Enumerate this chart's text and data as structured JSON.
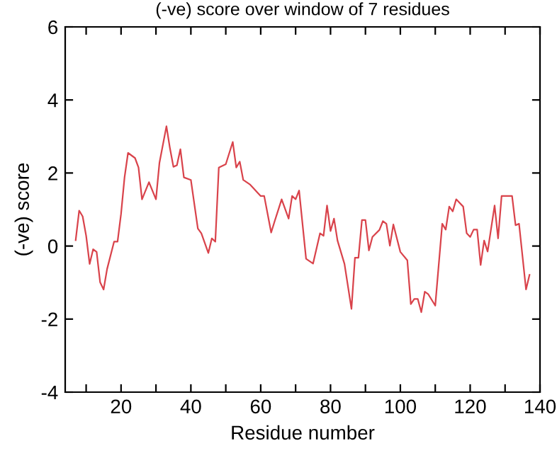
{
  "chart_data": {
    "type": "line",
    "title": "(-ve) score over window of 7 residues",
    "xlabel": "Residue number",
    "ylabel": "(-ve) score",
    "x": [
      7,
      8,
      9,
      10,
      11,
      12,
      13,
      14,
      15,
      16,
      18,
      19,
      20,
      21,
      22,
      24,
      25,
      26,
      28,
      30,
      31,
      33,
      34,
      35,
      36,
      37,
      38,
      40,
      42,
      43,
      45,
      46,
      47,
      48,
      50,
      52,
      53,
      54,
      55,
      57,
      60,
      61,
      63,
      64,
      66,
      68,
      69,
      70,
      71,
      73,
      75,
      77,
      78,
      79,
      80,
      81,
      82,
      84,
      86,
      87,
      88,
      89,
      90,
      91,
      92,
      94,
      95,
      96,
      97,
      98,
      100,
      102,
      103,
      104,
      105,
      106,
      107,
      108,
      110,
      112,
      113,
      114,
      115,
      116,
      118,
      119,
      120,
      121,
      122,
      123,
      124,
      125,
      127,
      128,
      129,
      132,
      133,
      134,
      136,
      137
    ],
    "series": [
      {
        "color": "#d9434b",
        "values": [
          0.16,
          0.97,
          0.81,
          0.28,
          -0.49,
          -0.09,
          -0.16,
          -0.99,
          -1.19,
          -0.63,
          0.12,
          0.12,
          0.88,
          1.88,
          2.55,
          2.41,
          2.15,
          1.28,
          1.75,
          1.28,
          2.28,
          3.28,
          2.68,
          2.17,
          2.21,
          2.65,
          1.88,
          1.81,
          0.48,
          0.35,
          -0.19,
          0.21,
          0.12,
          2.15,
          2.24,
          2.85,
          2.15,
          2.31,
          1.81,
          1.68,
          1.37,
          1.37,
          0.37,
          0.68,
          1.28,
          0.75,
          1.37,
          1.28,
          1.52,
          -0.35,
          -0.48,
          0.35,
          0.28,
          1.11,
          0.41,
          0.75,
          0.15,
          -0.49,
          -1.72,
          -0.32,
          -0.32,
          0.71,
          0.71,
          -0.12,
          0.25,
          0.44,
          0.68,
          0.61,
          0.01,
          0.59,
          -0.16,
          -0.39,
          -1.59,
          -1.45,
          -1.45,
          -1.81,
          -1.25,
          -1.32,
          -1.63,
          0.61,
          0.45,
          1.08,
          0.95,
          1.28,
          1.08,
          0.35,
          0.25,
          0.45,
          0.45,
          -0.52,
          0.15,
          -0.15,
          1.11,
          0.21,
          1.37,
          1.37,
          0.57,
          0.61,
          -1.19,
          -0.79
        ]
      }
    ],
    "xlim": [
      4,
      140
    ],
    "xticks": [
      {
        "value": 10,
        "label": null
      },
      20,
      {
        "value": 30,
        "label": null
      },
      40,
      {
        "value": 50,
        "label": null
      },
      60,
      {
        "value": 70,
        "label": null
      },
      80,
      {
        "value": 90,
        "label": null
      },
      100,
      {
        "value": 110,
        "label": null
      },
      120,
      {
        "value": 130,
        "label": null
      },
      140
    ],
    "ylim": [
      -4,
      6
    ],
    "yticks": [
      -4,
      -2,
      0,
      2,
      4,
      6
    ],
    "grid": false,
    "legend": false
  }
}
